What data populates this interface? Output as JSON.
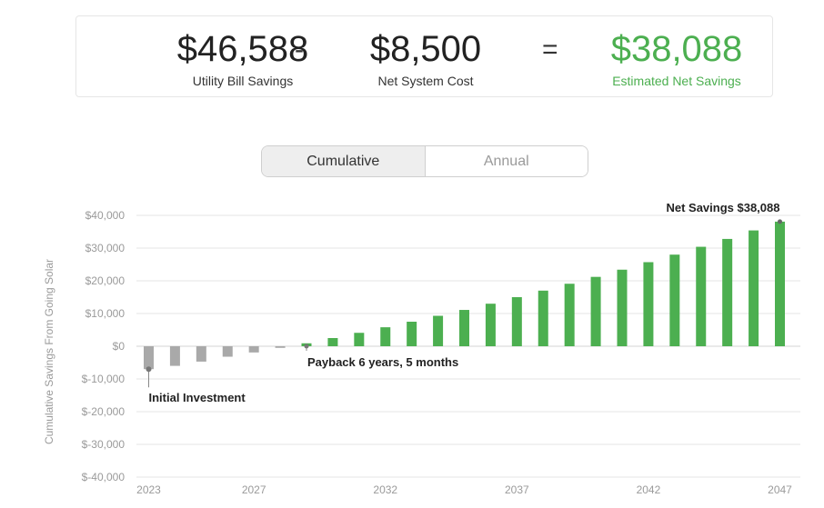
{
  "summary": {
    "utility_savings": {
      "value": "$46,588",
      "label": "Utility Bill Savings"
    },
    "minus": "-",
    "system_cost": {
      "value": "$8,500",
      "label": "Net System Cost"
    },
    "equals": "=",
    "net_savings": {
      "value": "$38,088",
      "label": "Estimated Net Savings"
    }
  },
  "toggle": {
    "options": [
      "Cumulative",
      "Annual"
    ],
    "selected": "Cumulative"
  },
  "colors": {
    "positive": "#4caf50",
    "negative": "#a9a9a9",
    "accent_green": "#4caf50"
  },
  "chart_data": {
    "type": "bar",
    "ylabel": "Cumulative Savings From Going Solar",
    "ylim": [
      -40000,
      40000
    ],
    "yticks": [
      40000,
      30000,
      20000,
      10000,
      0,
      -10000,
      -20000,
      -30000,
      -40000
    ],
    "ytick_labels": [
      "$40,000",
      "$30,000",
      "$20,000",
      "$10,000",
      "$0",
      "$-10,000",
      "$-20,000",
      "$-30,000",
      "$-40,000"
    ],
    "xtick_labels": [
      "2023",
      "2027",
      "2032",
      "2037",
      "2042",
      "2047"
    ],
    "xtick_years": [
      2023,
      2027,
      2032,
      2037,
      2042,
      2047
    ],
    "grid": true,
    "categories": [
      2023,
      2024,
      2025,
      2026,
      2027,
      2028,
      2029,
      2030,
      2031,
      2032,
      2033,
      2034,
      2035,
      2036,
      2037,
      2038,
      2039,
      2040,
      2041,
      2042,
      2043,
      2044,
      2045,
      2046,
      2047
    ],
    "values": [
      -7000,
      -6000,
      -4700,
      -3200,
      -1900,
      -500,
      900,
      2500,
      4100,
      5800,
      7500,
      9300,
      11100,
      13000,
      15000,
      17000,
      19100,
      21200,
      23400,
      25700,
      28000,
      30400,
      32800,
      35400,
      38088
    ],
    "annotations": [
      {
        "text": "Initial Investment",
        "year": 2023,
        "value": -7000
      },
      {
        "text": "Payback 6 years, 5 months",
        "year": 2029,
        "value": 0
      },
      {
        "text": "Net Savings $38,088",
        "year": 2047,
        "value": 38088
      }
    ]
  }
}
